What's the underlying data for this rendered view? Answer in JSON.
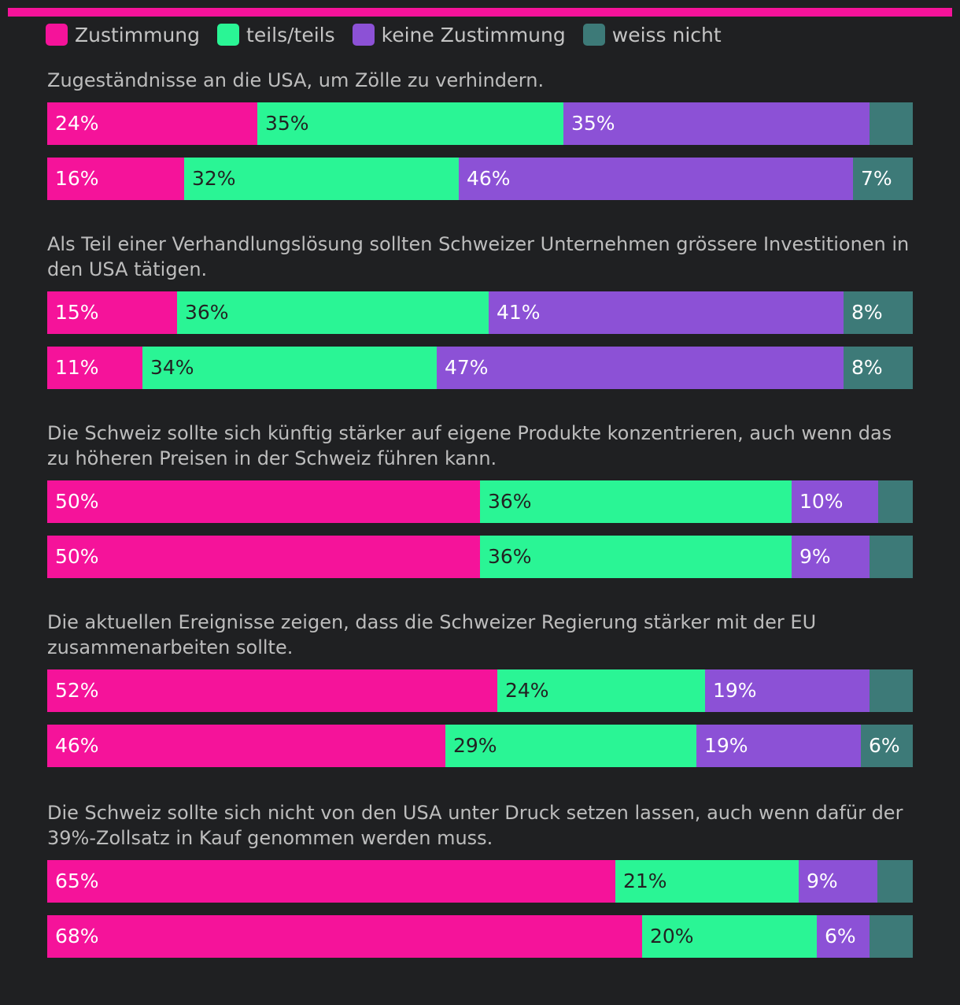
{
  "colors": {
    "background": "#1f2022",
    "accent": "#f5139a",
    "Zustimmung": "#f5139a",
    "teils/teils": "#2af595",
    "keine Zustimmung": "#8c51d6",
    "weiss nicht": "#3d7a78"
  },
  "chart_data": {
    "type": "bar",
    "orientation": "horizontal",
    "stacked": true,
    "normalized": true,
    "legend": [
      "Zustimmung",
      "teils/teils",
      "keine Zustimmung",
      "weiss nicht"
    ],
    "questions": [
      {
        "title": "Zugeständnisse an die USA, um Zölle zu verhindern.",
        "bars": [
          {
            "values": [
              24,
              35,
              35,
              5
            ],
            "labels": [
              "24%",
              "35%",
              "35%",
              ""
            ]
          },
          {
            "values": [
              16,
              32,
              46,
              7
            ],
            "labels": [
              "16%",
              "32%",
              "46%",
              "7%"
            ]
          }
        ]
      },
      {
        "title": "Als Teil einer Verhandlungslösung sollten Schweizer Unternehmen grössere Investitionen in den USA tätigen.",
        "bars": [
          {
            "values": [
              15,
              36,
              41,
              8
            ],
            "labels": [
              "15%",
              "36%",
              "41%",
              "8%"
            ]
          },
          {
            "values": [
              11,
              34,
              47,
              8
            ],
            "labels": [
              "11%",
              "34%",
              "47%",
              "8%"
            ]
          }
        ]
      },
      {
        "title": "Die Schweiz sollte sich künftig stärker auf eigene Produkte konzentrieren, auch wenn das zu höheren Preisen in der Schweiz führen kann.",
        "bars": [
          {
            "values": [
              50,
              36,
              10,
              4
            ],
            "labels": [
              "50%",
              "36%",
              "10%",
              ""
            ]
          },
          {
            "values": [
              50,
              36,
              9,
              5
            ],
            "labels": [
              "50%",
              "36%",
              "9%",
              ""
            ]
          }
        ]
      },
      {
        "title": "Die aktuellen Ereignisse zeigen, dass die Schweizer Regierung stärker mit der EU zusammenarbeiten sollte.",
        "bars": [
          {
            "values": [
              52,
              24,
              19,
              5
            ],
            "labels": [
              "52%",
              "24%",
              "19%",
              ""
            ]
          },
          {
            "values": [
              46,
              29,
              19,
              6
            ],
            "labels": [
              "46%",
              "29%",
              "19%",
              "6%"
            ]
          }
        ]
      },
      {
        "title": "Die Schweiz sollte sich nicht von den USA unter Druck setzen lassen, auch wenn dafür der 39%-Zollsatz in Kauf genommen werden muss.",
        "bars": [
          {
            "values": [
              65,
              21,
              9,
              4
            ],
            "labels": [
              "65%",
              "21%",
              "9%",
              ""
            ]
          },
          {
            "values": [
              68,
              20,
              6,
              5
            ],
            "labels": [
              "68%",
              "20%",
              "6%",
              ""
            ]
          }
        ]
      }
    ]
  }
}
